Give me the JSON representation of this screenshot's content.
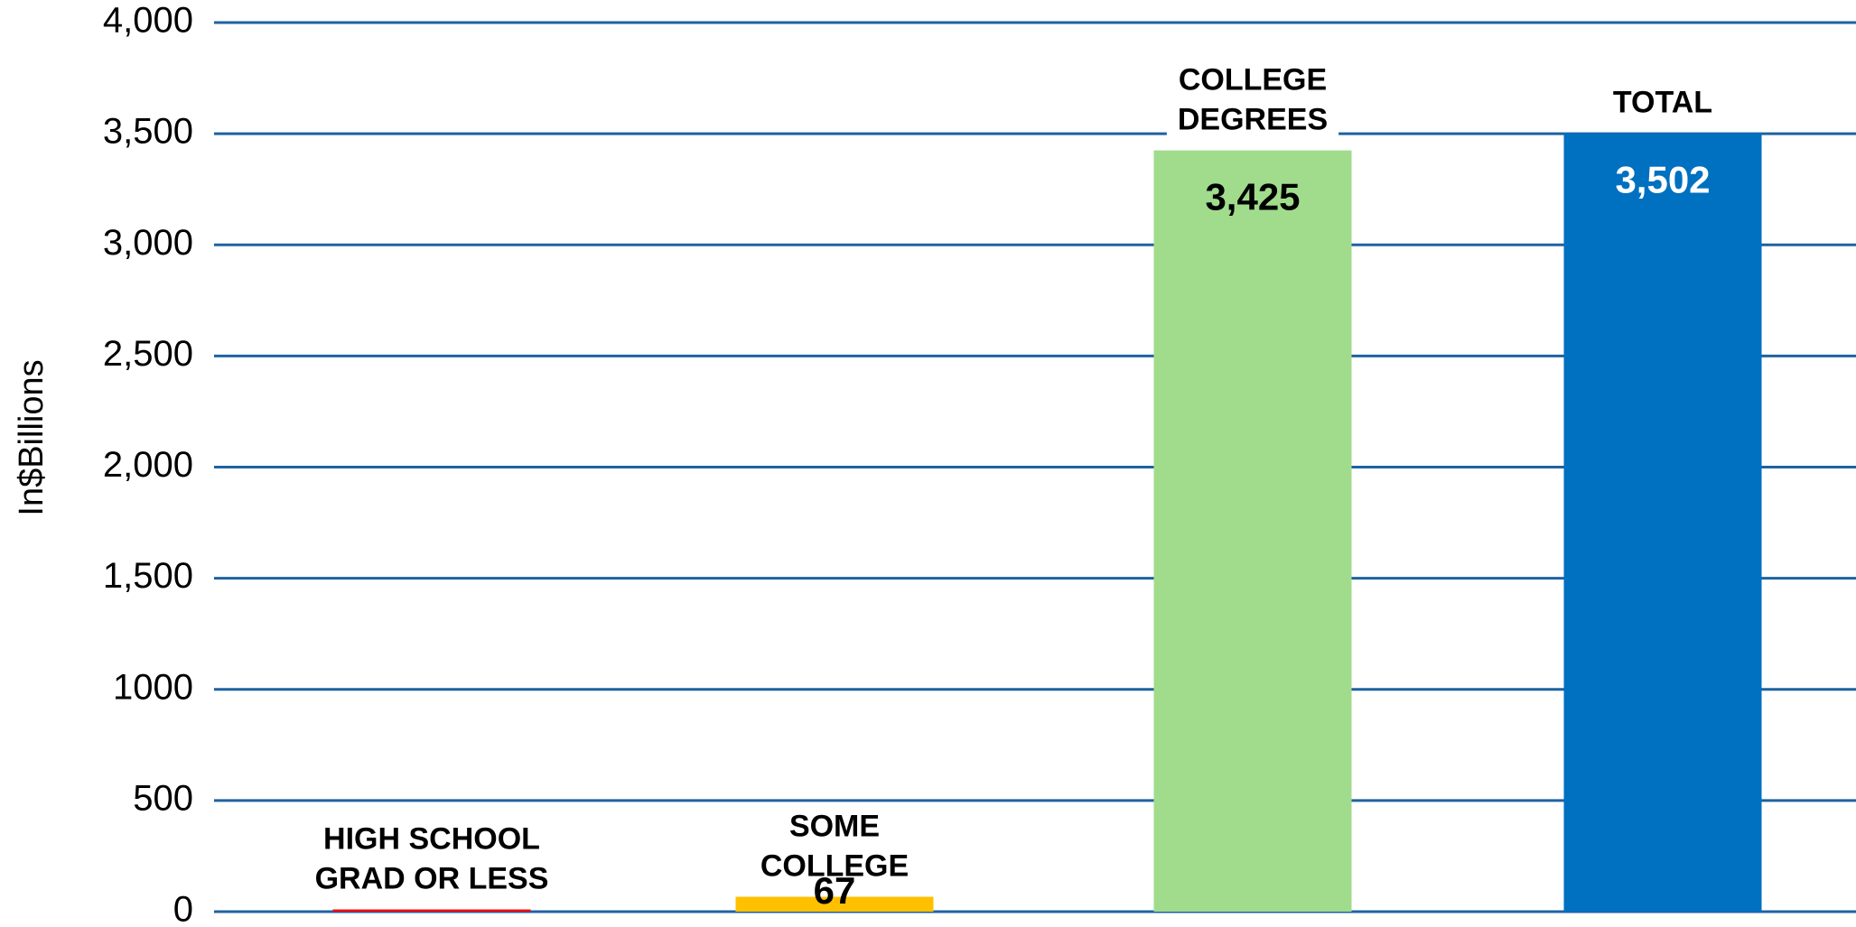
{
  "chart_data": {
    "type": "bar",
    "y_axis_label": "In$Billions",
    "categories": [
      [
        "HIGH SCHOOL",
        "GRAD OR LESS"
      ],
      [
        "SOME",
        "COLLEGE"
      ],
      [
        "COLLEGE",
        "DEGREES"
      ],
      [
        "TOTAL"
      ]
    ],
    "values": [
      10,
      67,
      3425,
      3502
    ],
    "value_labels": [
      null,
      "67",
      "3,425",
      "3,502"
    ],
    "colors": [
      "#ff0000",
      "#ffc000",
      "#a0dc8c",
      "#0070c0"
    ],
    "value_label_colors": [
      "#000000",
      "#000000",
      "#000000",
      "#ffffff"
    ],
    "ylim": [
      0,
      4000
    ],
    "yticks": [
      0,
      500,
      1000,
      {
        "value": 1500,
        "label": "1,500"
      },
      {
        "value": 2000,
        "label": "2,000"
      },
      {
        "value": 2500,
        "label": "2,500"
      },
      {
        "value": 3000,
        "label": "3,000"
      },
      {
        "value": 3500,
        "label": "3,500"
      },
      {
        "value": 4000,
        "label": "4,000"
      }
    ],
    "grid": true,
    "grid_color": "#1f62a0"
  }
}
